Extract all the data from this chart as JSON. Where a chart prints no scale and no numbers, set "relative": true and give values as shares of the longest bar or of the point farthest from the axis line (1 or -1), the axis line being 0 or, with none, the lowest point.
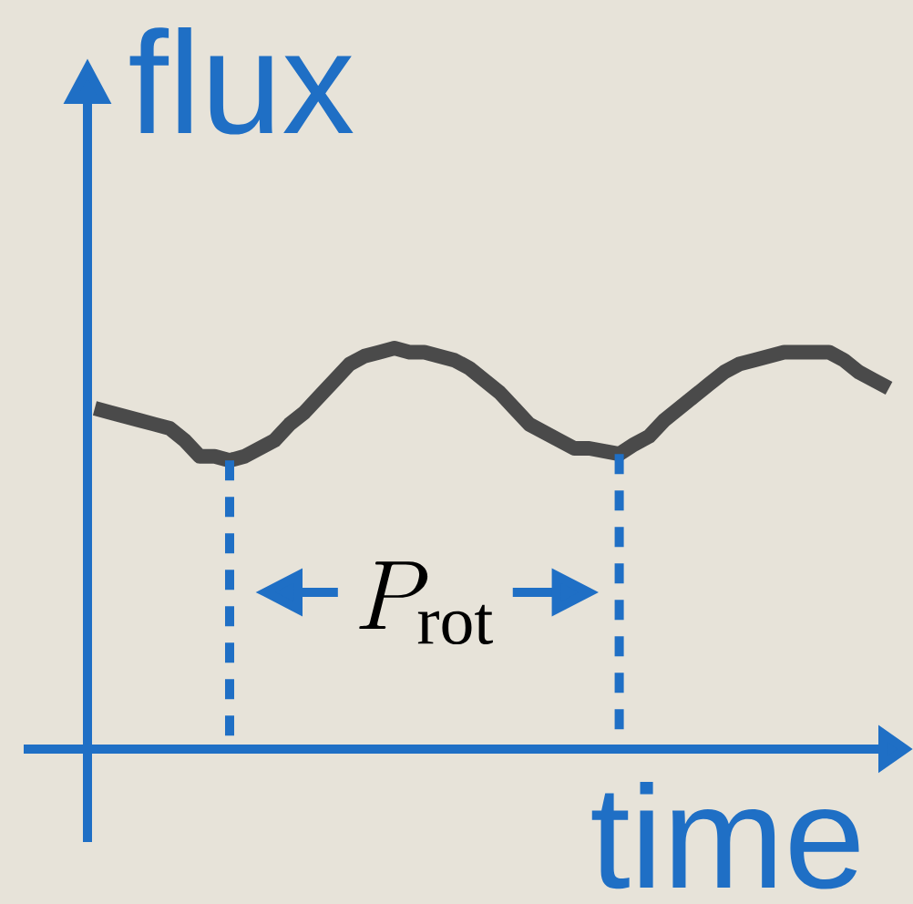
{
  "chart_data": {
    "type": "line",
    "xlabel": "time",
    "ylabel": "flux",
    "relative": true,
    "categories": [
      null,
      null,
      null,
      null,
      null,
      null,
      null,
      null,
      null,
      null,
      null,
      null,
      null,
      null,
      null,
      null,
      null,
      null,
      null,
      null,
      null,
      null,
      null,
      null,
      null,
      null,
      null,
      null,
      null,
      null,
      null,
      null,
      null,
      null,
      null,
      null,
      null,
      null,
      null,
      null,
      null,
      null,
      null,
      null,
      null,
      null,
      null,
      null,
      null,
      null,
      null,
      null,
      null,
      null
    ],
    "series": [
      {
        "color": "#4a4a4a",
        "values": [
          0.85,
          0.84,
          0.83,
          0.82,
          0.81,
          0.8,
          0.77,
          0.73,
          0.73,
          0.72,
          0.73,
          0.75,
          0.77,
          0.81,
          0.84,
          0.88,
          0.92,
          0.96,
          0.98,
          0.99,
          1.0,
          0.99,
          0.99,
          0.98,
          0.97,
          0.95,
          0.92,
          0.89,
          0.85,
          0.81,
          0.79,
          0.77,
          0.75,
          0.75,
          0.743,
          0.736,
          0.76,
          0.78,
          0.82,
          0.85,
          0.88,
          0.91,
          0.94,
          0.96,
          0.97,
          0.98,
          0.99,
          0.99,
          0.99,
          0.99,
          0.97,
          0.94,
          0.92,
          0.9
        ]
      }
    ],
    "annotations": [
      "P_{\\mathrm{rot}}"
    ]
  }
}
